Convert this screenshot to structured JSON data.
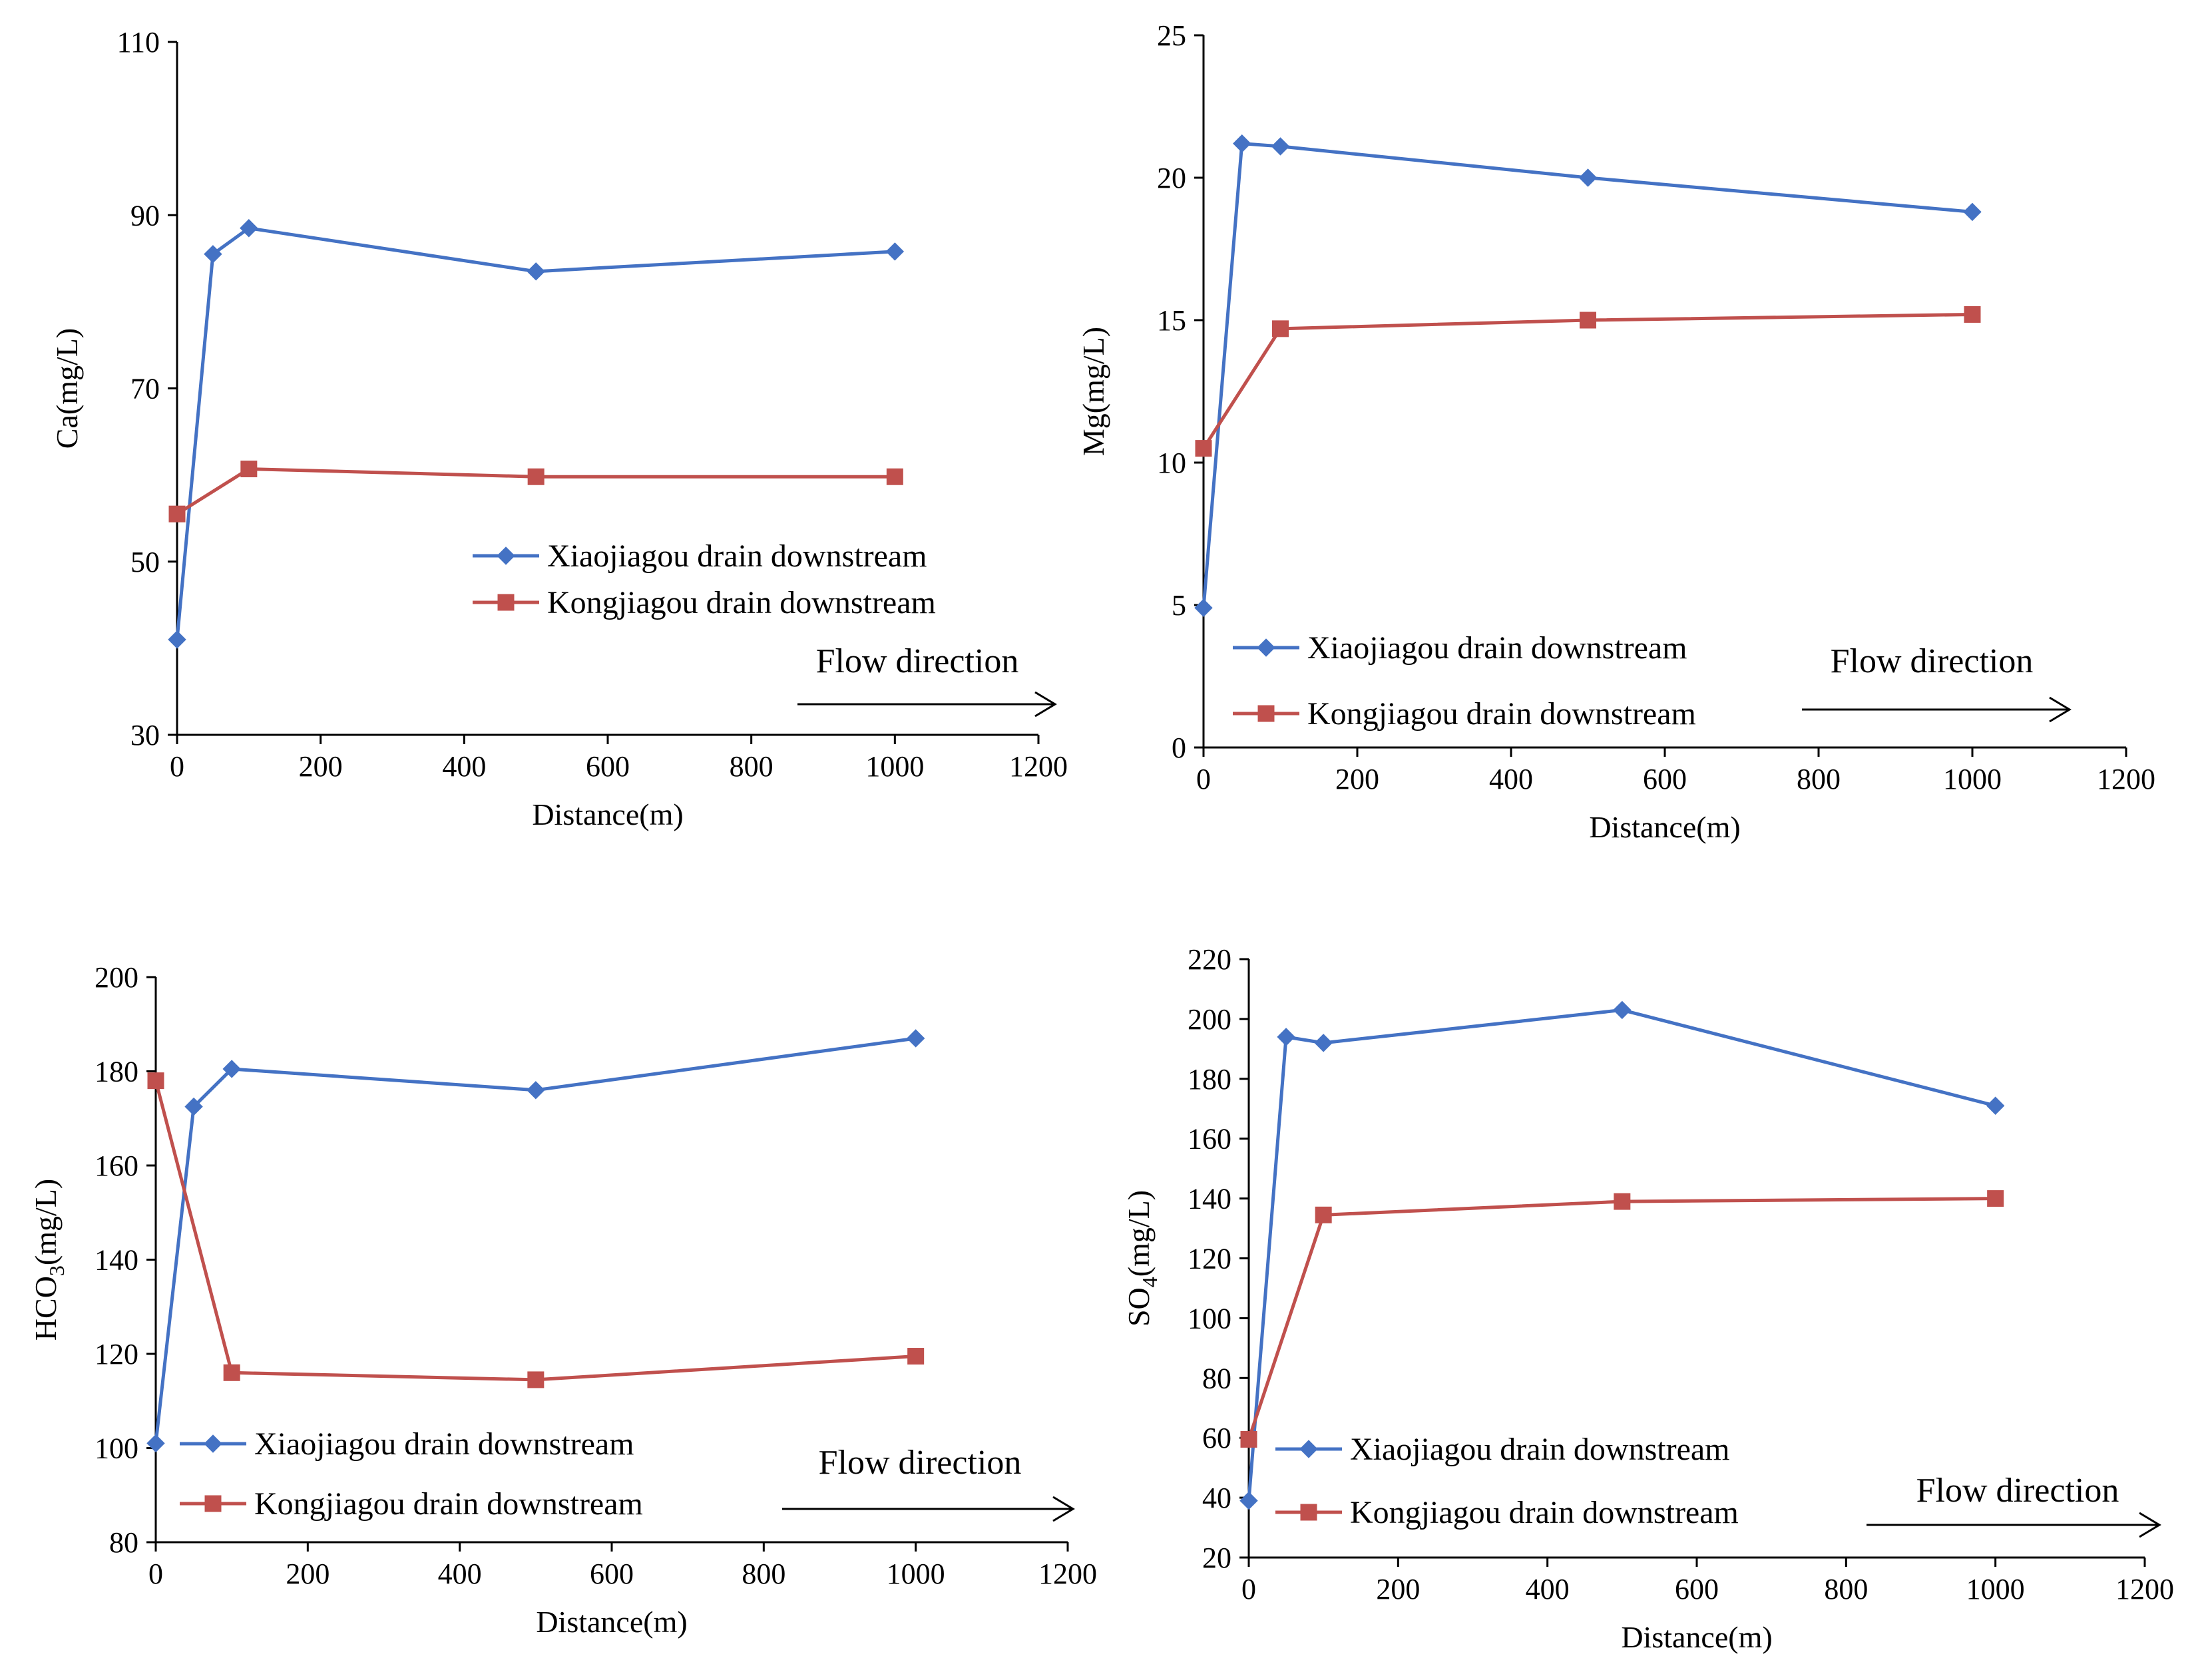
{
  "chart_data": [
    {
      "id": "ca",
      "type": "line",
      "ylabel": "Ca(mg/L)",
      "ylabel_main": "Ca(mg/L)",
      "ylabel_sub": "",
      "ylabel_tail": "",
      "xlabel": "Distance(m)",
      "xlim": [
        0,
        1200
      ],
      "ylim": [
        30,
        110
      ],
      "xticks": [
        0,
        200,
        400,
        600,
        800,
        1000,
        1200
      ],
      "yticks": [
        30,
        50,
        70,
        90,
        110
      ],
      "grid": false,
      "legend_position": "center-right",
      "annotation": "Flow direction",
      "series": [
        {
          "name": "Xiaojiagou drain downstream",
          "color": "#4472C4",
          "marker": "diamond",
          "x": [
            0,
            50,
            100,
            500,
            1000
          ],
          "y": [
            41,
            85.5,
            88.5,
            83.5,
            85.8
          ]
        },
        {
          "name": "Kongjiagou drain downstream",
          "color": "#C0504D",
          "marker": "square",
          "x": [
            0,
            100,
            500,
            1000
          ],
          "y": [
            55.5,
            60.7,
            59.8,
            59.8
          ]
        }
      ]
    },
    {
      "id": "mg",
      "type": "line",
      "ylabel": "Mg(mg/L)",
      "ylabel_main": "Mg(mg/L)",
      "ylabel_sub": "",
      "ylabel_tail": "",
      "xlabel": "Distance(m)",
      "xlim": [
        0,
        1200
      ],
      "ylim": [
        0,
        25
      ],
      "xticks": [
        0,
        200,
        400,
        600,
        800,
        1000,
        1200
      ],
      "yticks": [
        0,
        5,
        10,
        15,
        20,
        25
      ],
      "grid": false,
      "legend_position": "bottom-left",
      "annotation": "Flow direction",
      "series": [
        {
          "name": "Xiaojiagou drain downstream",
          "color": "#4472C4",
          "marker": "diamond",
          "x": [
            0,
            50,
            100,
            500,
            1000
          ],
          "y": [
            4.9,
            21.2,
            21.1,
            20.0,
            18.8
          ]
        },
        {
          "name": "Kongjiagou drain downstream",
          "color": "#C0504D",
          "marker": "square",
          "x": [
            0,
            100,
            500,
            1000
          ],
          "y": [
            10.5,
            14.7,
            15.0,
            15.2
          ]
        }
      ]
    },
    {
      "id": "hco3",
      "type": "line",
      "ylabel": "HCO3(mg/L)",
      "ylabel_main": "HCO",
      "ylabel_sub": "3",
      "ylabel_tail": "(mg/L)",
      "xlabel": "Distance(m)",
      "xlim": [
        0,
        1200
      ],
      "ylim": [
        80,
        200
      ],
      "xticks": [
        0,
        200,
        400,
        600,
        800,
        1000,
        1200
      ],
      "yticks": [
        80,
        100,
        120,
        140,
        160,
        180,
        200
      ],
      "grid": false,
      "legend_position": "bottom-left",
      "annotation": "Flow direction",
      "series": [
        {
          "name": "Xiaojiagou drain downstream",
          "color": "#4472C4",
          "marker": "diamond",
          "x": [
            0,
            50,
            100,
            500,
            1000
          ],
          "y": [
            101,
            172.5,
            180.5,
            176,
            187
          ]
        },
        {
          "name": "Kongjiagou drain downstream",
          "color": "#C0504D",
          "marker": "square",
          "x": [
            0,
            100,
            500,
            1000
          ],
          "y": [
            178,
            116,
            114.5,
            119.5
          ]
        }
      ]
    },
    {
      "id": "so4",
      "type": "line",
      "ylabel": "SO4(mg/L)",
      "ylabel_main": "SO",
      "ylabel_sub": "4",
      "ylabel_tail": "(mg/L)",
      "xlabel": "Distance(m)",
      "xlim": [
        0,
        1200
      ],
      "ylim": [
        20,
        220
      ],
      "xticks": [
        0,
        200,
        400,
        600,
        800,
        1000,
        1200
      ],
      "yticks": [
        20,
        40,
        60,
        80,
        100,
        120,
        140,
        160,
        180,
        200,
        220
      ],
      "grid": false,
      "legend_position": "bottom-left",
      "annotation": "Flow direction",
      "series": [
        {
          "name": "Xiaojiagou drain downstream",
          "color": "#4472C4",
          "marker": "diamond",
          "x": [
            0,
            50,
            100,
            500,
            1000
          ],
          "y": [
            39,
            194,
            192,
            203,
            171
          ]
        },
        {
          "name": "Kongjiagou drain downstream",
          "color": "#C0504D",
          "marker": "square",
          "x": [
            0,
            100,
            500,
            1000
          ],
          "y": [
            59.5,
            134.5,
            139,
            140
          ]
        }
      ]
    }
  ]
}
